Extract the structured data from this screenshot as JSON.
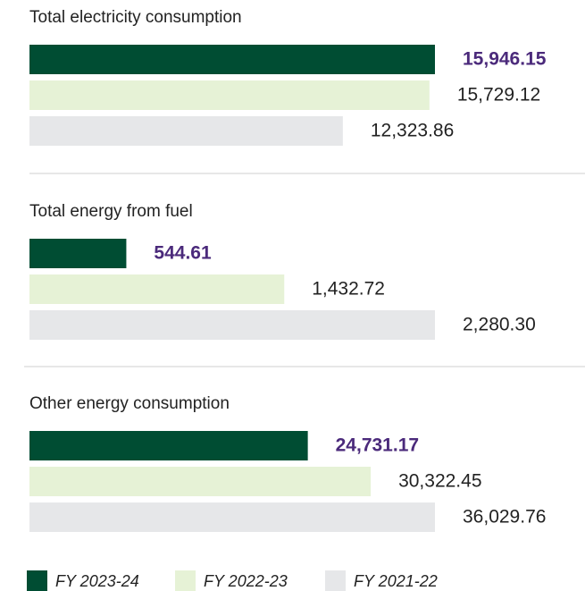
{
  "chart_data": [
    {
      "type": "bar",
      "title": "Total electricity consumption",
      "values": [
        15946.15,
        15729.12,
        12323.86
      ],
      "value_labels": [
        "15,946.15",
        "15,729.12",
        "12,323.86"
      ]
    },
    {
      "type": "bar",
      "title": "Total energy from fuel",
      "values": [
        544.61,
        1432.72,
        2280.3
      ],
      "value_labels": [
        "544.61",
        "1,432.72",
        "2,280.30"
      ]
    },
    {
      "type": "bar",
      "title": "Other energy consumption",
      "values": [
        24731.17,
        30322.45,
        36029.76
      ],
      "value_labels": [
        "24,731.17",
        "30,322.45",
        "36,029.76"
      ]
    }
  ],
  "legend": {
    "series": [
      {
        "name": "FY 2023-24",
        "color": "#004d33"
      },
      {
        "name": "FY 2022-23",
        "color": "#e6f2d6"
      },
      {
        "name": "FY 2021-22",
        "color": "#e6e7e9"
      }
    ],
    "highlight_color": "#4b2a7b"
  }
}
